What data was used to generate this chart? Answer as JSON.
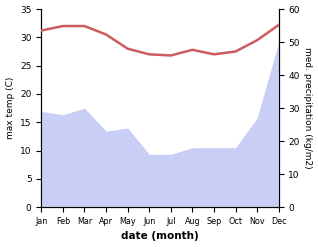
{
  "months": [
    "Jan",
    "Feb",
    "Mar",
    "Apr",
    "May",
    "Jun",
    "Jul",
    "Aug",
    "Sep",
    "Oct",
    "Nov",
    "Dec"
  ],
  "temperature": [
    31.2,
    32.0,
    32.0,
    30.5,
    28.0,
    27.0,
    26.8,
    27.8,
    27.0,
    27.5,
    29.5,
    32.2
  ],
  "precipitation": [
    29,
    28,
    30,
    23,
    24,
    16,
    16,
    18,
    18,
    18,
    27,
    50
  ],
  "temp_color": "#cd5c5c",
  "precip_fill_color": "#c8cef5",
  "temp_ylim": [
    0,
    35
  ],
  "precip_ylim": [
    0,
    60
  ],
  "left_yticks": [
    0,
    5,
    10,
    15,
    20,
    25,
    30,
    35
  ],
  "right_yticks": [
    0,
    10,
    20,
    30,
    40,
    50,
    60
  ],
  "xlabel": "date (month)",
  "ylabel_left": "max temp (C)",
  "ylabel_right": "med. precipitation (kg/m2)"
}
